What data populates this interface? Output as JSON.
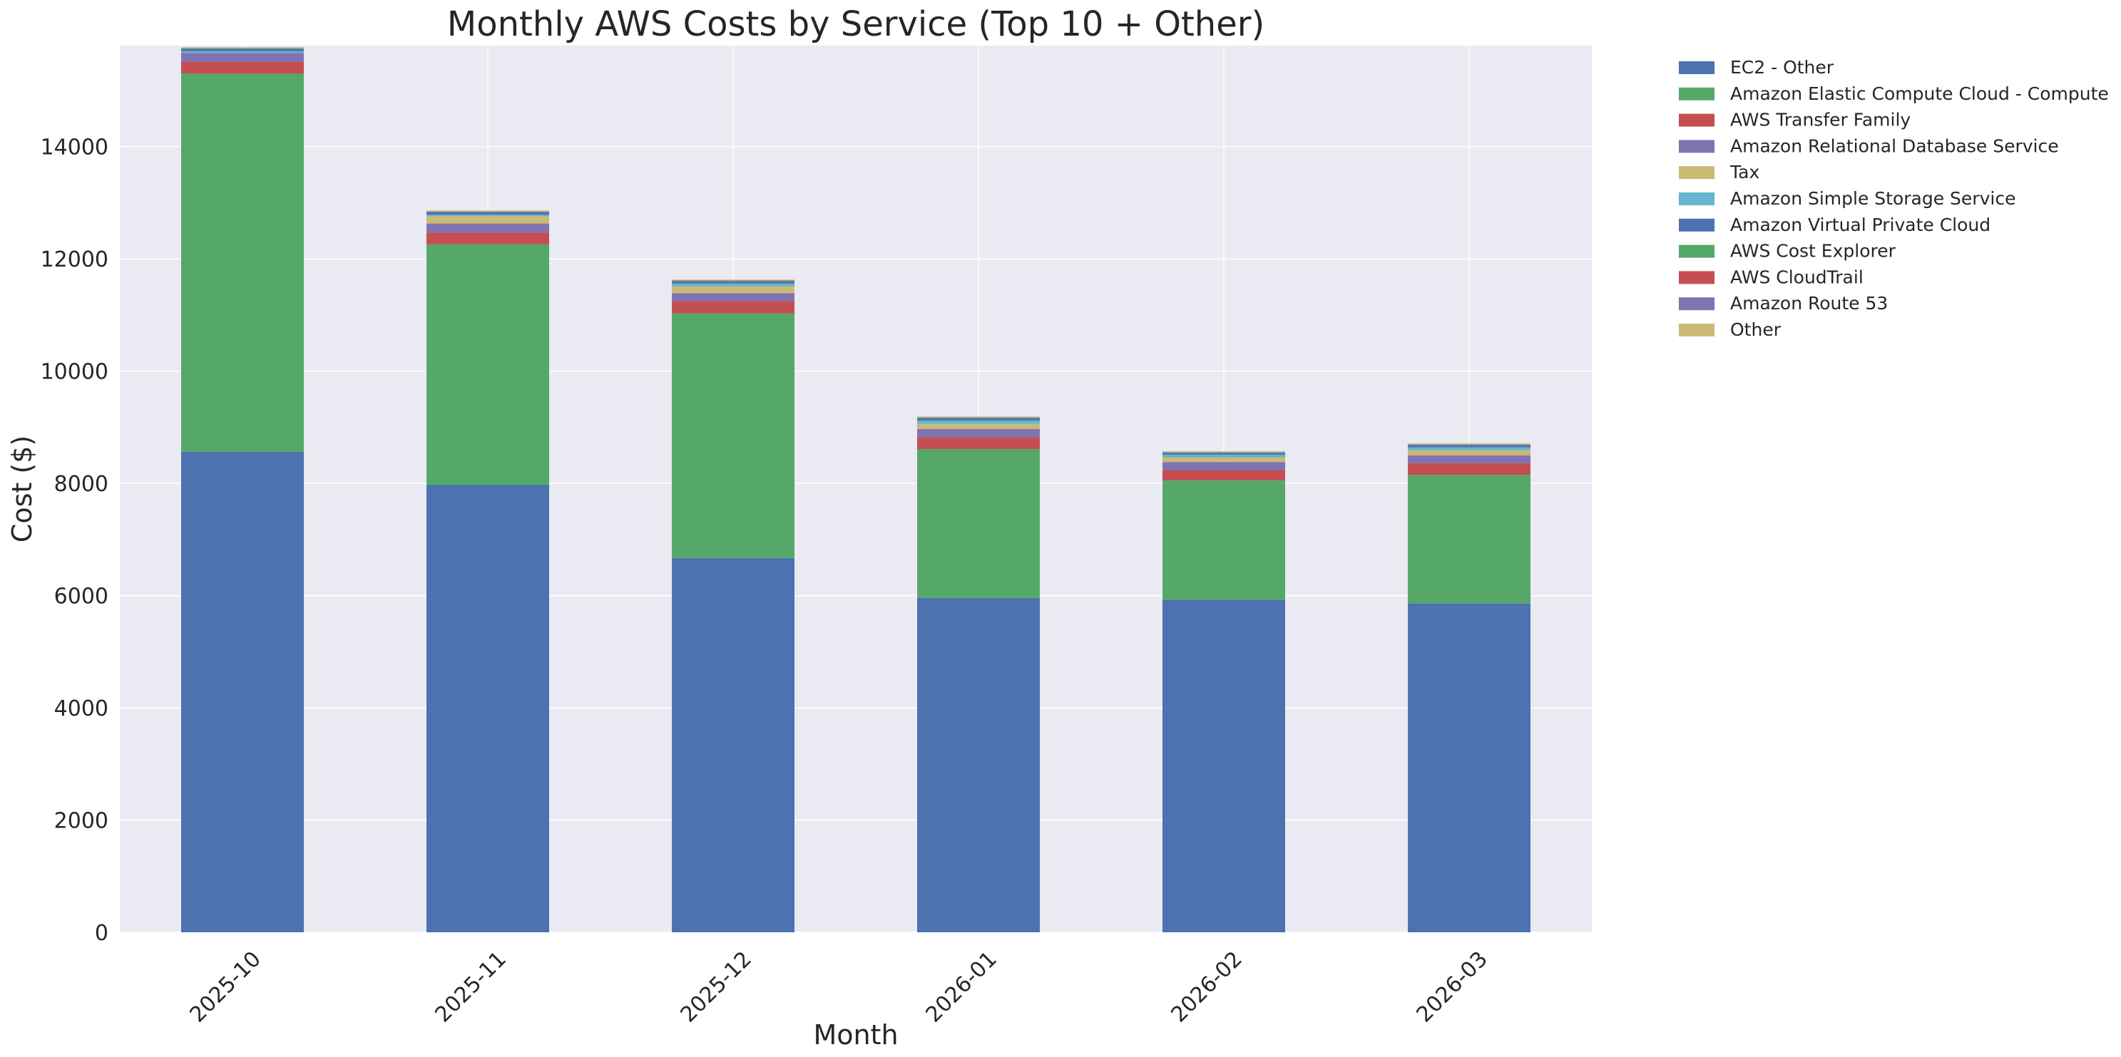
{
  "chart_data": {
    "type": "bar",
    "stacked": true,
    "title": "Monthly AWS Costs by Service (Top 10 + Other)",
    "xlabel": "Month",
    "ylabel": "Cost ($)",
    "ylim": [
      0,
      15800
    ],
    "yticks": [
      0,
      2000,
      4000,
      6000,
      8000,
      10000,
      12000,
      14000
    ],
    "grid": true,
    "legend_position": "outside-right",
    "categories": [
      "2025-10",
      "2025-11",
      "2025-12",
      "2026-01",
      "2026-02",
      "2026-03"
    ],
    "series": [
      {
        "name": "EC2 - Other",
        "color": "#4c72b0",
        "values": [
          8560,
          7970,
          6670,
          5960,
          5920,
          5860
        ]
      },
      {
        "name": "Amazon Elastic Compute Cloud - Compute",
        "color": "#55a868",
        "values": [
          6740,
          4290,
          4360,
          2650,
          2130,
          2290
        ]
      },
      {
        "name": "AWS Transfer Family",
        "color": "#c44e52",
        "values": [
          210,
          210,
          220,
          210,
          180,
          210
        ]
      },
      {
        "name": "Amazon Relational Database Service",
        "color": "#8172b2",
        "values": [
          160,
          160,
          140,
          150,
          150,
          140
        ]
      },
      {
        "name": "Tax",
        "color": "#ccb974",
        "values": [
          0,
          130,
          120,
          90,
          80,
          90
        ]
      },
      {
        "name": "Amazon Simple Storage Service",
        "color": "#64b5cd",
        "values": [
          30,
          30,
          50,
          60,
          50,
          50
        ]
      },
      {
        "name": "Amazon Virtual Private Cloud",
        "color": "#4c72b0",
        "values": [
          40,
          40,
          40,
          40,
          30,
          40
        ]
      },
      {
        "name": "AWS Cost Explorer",
        "color": "#55a868",
        "values": [
          10,
          10,
          10,
          10,
          10,
          10
        ]
      },
      {
        "name": "AWS CloudTrail",
        "color": "#c44e52",
        "values": [
          5,
          5,
          5,
          5,
          5,
          5
        ]
      },
      {
        "name": "Amazon Route 53",
        "color": "#8172b2",
        "values": [
          3,
          3,
          3,
          3,
          3,
          3
        ]
      },
      {
        "name": "Other",
        "color": "#ccb974",
        "values": [
          12,
          12,
          12,
          12,
          12,
          12
        ]
      }
    ]
  },
  "colors": {
    "plot_background": "#eaeaf2",
    "grid": "#ffffff",
    "text": "#262626"
  }
}
